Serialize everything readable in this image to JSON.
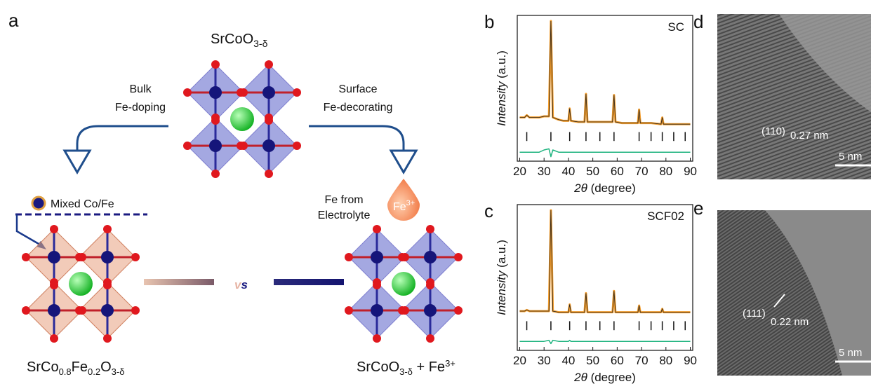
{
  "panel_a": {
    "label": "a",
    "top_formula": [
      "SrCoO",
      "3-δ"
    ],
    "left_route": [
      "Bulk",
      "Fe-doping"
    ],
    "right_route": [
      "Surface",
      "Fe-decorating"
    ],
    "mixed_label": "Mixed Co/Fe",
    "electrolyte": [
      "Fe from",
      "Electrolyte"
    ],
    "ion": [
      "Fe",
      "3+"
    ],
    "versus": [
      "v",
      "s"
    ],
    "left_formula": [
      "SrCo",
      "0.8",
      "Fe",
      "0.2",
      "O",
      "3-δ"
    ],
    "right_formula": [
      "SrCoO",
      "3-δ",
      " + Fe",
      "3+"
    ]
  },
  "chart_data": [
    {
      "type": "line",
      "panel_label": "b",
      "annotation": "SC",
      "ylabel": [
        "Intensity",
        " (a.u.)"
      ],
      "xlabel": [
        "2θ",
        " (degree)"
      ],
      "x": [
        20,
        22,
        22.9,
        24,
        26,
        28,
        30,
        32,
        32.8,
        33.6,
        36,
        38,
        40,
        40.5,
        41,
        44,
        46.6,
        47.2,
        47.8,
        52,
        54,
        58.1,
        58.7,
        59.3,
        62,
        66,
        68.5,
        69,
        69.5,
        74,
        78,
        78.5,
        79,
        84,
        88,
        90
      ],
      "series": [
        {
          "color": "#f39c2a",
          "values": [
            14,
            14,
            16,
            14,
            14,
            14,
            15,
            15,
            100,
            14,
            12,
            11,
            11,
            22,
            11,
            10,
            10,
            35,
            10,
            10,
            10,
            10,
            34,
            10,
            9,
            9,
            9,
            21,
            9,
            9,
            8,
            14,
            8,
            8,
            8,
            8
          ]
        },
        {
          "color": "#1db37e",
          "values": [
            -17,
            -17,
            -17,
            -17,
            -17,
            -17,
            -15,
            -14,
            -21,
            -15,
            -17,
            -17,
            -17,
            -17,
            -17,
            -17,
            -17,
            -17,
            -17,
            -17,
            -17,
            -17,
            -17,
            -17,
            -17,
            -17,
            -17,
            -17,
            -17,
            -17,
            -17,
            -17,
            -17,
            -17,
            -17,
            -17
          ]
        }
      ],
      "bragg_positions": [
        22.9,
        32.8,
        40.5,
        47.2,
        52.9,
        58.7,
        69.0,
        73.9,
        78.5,
        83.2,
        87.9
      ],
      "xlim": [
        19,
        91
      ],
      "ylim": [
        -25,
        105
      ],
      "xticks": [
        20,
        30,
        40,
        50,
        60,
        70,
        80,
        90
      ]
    },
    {
      "type": "line",
      "panel_label": "c",
      "annotation": "SCF02",
      "ylabel": [
        "Intensity",
        " (a.u.)"
      ],
      "xlabel": [
        "2θ",
        " (degree)"
      ],
      "x": [
        20,
        22,
        22.9,
        24,
        26,
        28,
        30,
        32,
        32.8,
        33.6,
        36,
        38,
        40,
        40.5,
        41,
        44,
        46.6,
        47.2,
        47.8,
        52,
        54,
        58.1,
        58.7,
        59.3,
        62,
        66,
        68.5,
        69,
        69.5,
        74,
        78,
        78.5,
        79,
        84,
        88,
        90
      ],
      "series": [
        {
          "color": "#f39c2a",
          "values": [
            10,
            10,
            11,
            10,
            10,
            10,
            10,
            10,
            100,
            10,
            9,
            9,
            9,
            16,
            9,
            9,
            9,
            26,
            9,
            9,
            9,
            9,
            28,
            9,
            9,
            9,
            9,
            15,
            9,
            9,
            9,
            12,
            9,
            9,
            9,
            9
          ]
        },
        {
          "color": "#1db37e",
          "values": [
            -17,
            -17,
            -17,
            -17,
            -17,
            -17,
            -17,
            -16,
            -19,
            -16,
            -17,
            -17,
            -17,
            -16,
            -17,
            -17,
            -17,
            -17,
            -17,
            -17,
            -17,
            -17,
            -17,
            -17,
            -17,
            -17,
            -17,
            -17,
            -17,
            -17,
            -17,
            -17,
            -17,
            -17,
            -17,
            -17
          ]
        }
      ],
      "bragg_positions": [
        22.9,
        32.8,
        40.5,
        47.2,
        52.9,
        58.7,
        69.0,
        73.9,
        78.5,
        83.2,
        87.9
      ],
      "xlim": [
        19,
        91
      ],
      "ylim": [
        -25,
        105
      ],
      "xticks": [
        20,
        30,
        40,
        50,
        60,
        70,
        80,
        90
      ]
    }
  ],
  "panel_d": {
    "label": "d",
    "plane": "(110)",
    "spacing": "0.27 nm",
    "scale": "5 nm"
  },
  "panel_e": {
    "label": "e",
    "plane": "(111)",
    "spacing": "0.22 nm",
    "scale": "5 nm"
  }
}
